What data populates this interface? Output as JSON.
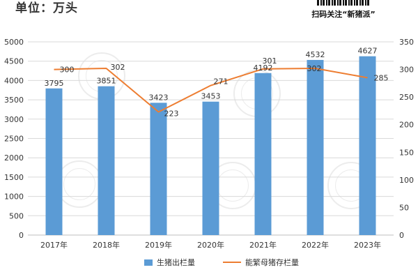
{
  "header": {
    "unit_label": "单位：万头",
    "brand_caption": "扫码关注“新猪派”",
    "watermark_text": "新猪派"
  },
  "colors": {
    "bar": "#5B9BD5",
    "line": "#ED7D31",
    "axis_text": "#333333",
    "grid": "#D9D9D9"
  },
  "chart_data": {
    "type": "bar",
    "categories": [
      "2017年",
      "2018年",
      "2019年",
      "2020年",
      "2021年",
      "2022年",
      "2023年"
    ],
    "series": [
      {
        "name": "生猪出栏量",
        "type": "bar",
        "axis": "left",
        "values": [
          3795,
          3851,
          3423,
          3453,
          4192,
          4532,
          4627
        ]
      },
      {
        "name": "能繁母猪存栏量",
        "type": "line",
        "axis": "right",
        "values": [
          300,
          302,
          223,
          271,
          301,
          302,
          285
        ]
      }
    ],
    "ylim_left": [
      0,
      5000
    ],
    "yticks_left": [
      0,
      500,
      1000,
      1500,
      2000,
      2500,
      3000,
      3500,
      4000,
      4500,
      5000
    ],
    "ylim_right": [
      0,
      350
    ],
    "yticks_right": [
      0,
      50,
      100,
      150,
      200,
      250,
      300,
      350
    ],
    "grid": true,
    "legend_position": "bottom"
  }
}
